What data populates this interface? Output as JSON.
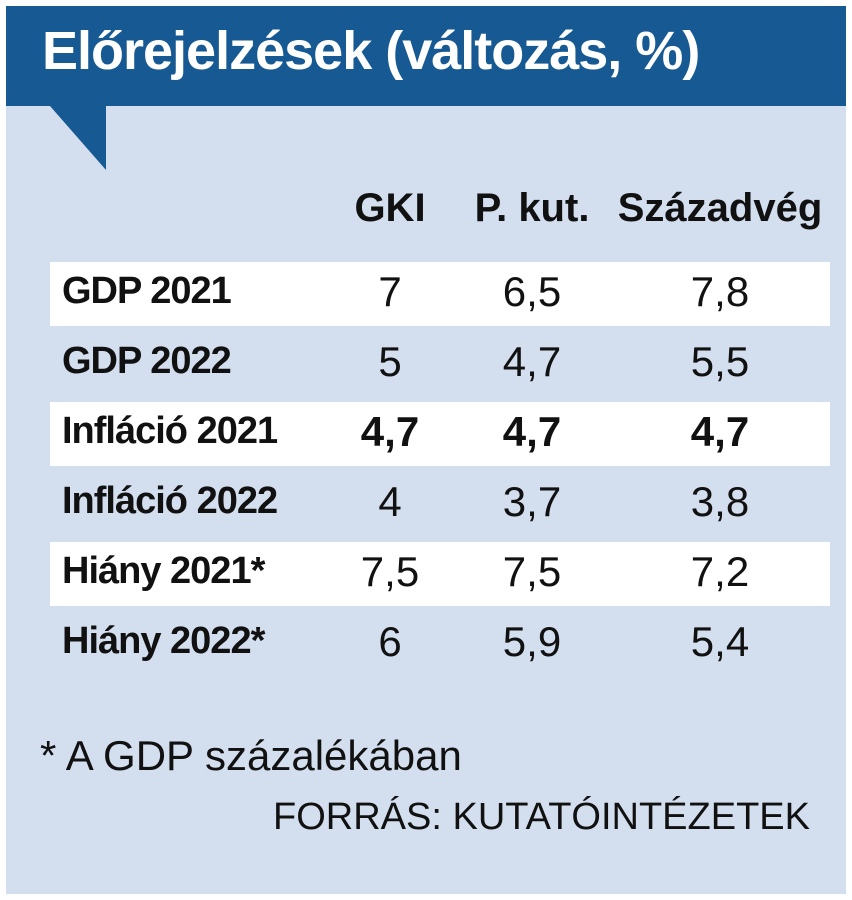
{
  "title": "Előrejelzések (változás, %)",
  "chart_data": {
    "type": "table",
    "title": "Előrejelzések (változás, %)",
    "columns": [
      "GKI",
      "P. kut.",
      "Századvég"
    ],
    "rows": [
      {
        "label": "GDP 2021",
        "values": [
          "7",
          "6,5",
          "7,8"
        ],
        "bold": false
      },
      {
        "label": "GDP 2022",
        "values": [
          "5",
          "4,7",
          "5,5"
        ],
        "bold": false
      },
      {
        "label": "Infláció 2021",
        "values": [
          "4,7",
          "4,7",
          "4,7"
        ],
        "bold": true
      },
      {
        "label": "Infláció 2022",
        "values": [
          "4",
          "3,7",
          "3,8"
        ],
        "bold": false
      },
      {
        "label": "Hiány 2021*",
        "values": [
          "7,5",
          "7,5",
          "7,2"
        ],
        "bold": false
      },
      {
        "label": "Hiány 2022*",
        "values": [
          "6",
          "5,9",
          "5,4"
        ],
        "bold": false
      }
    ],
    "footnote": "* A GDP százalékában",
    "source": "FORRÁS: KUTATÓINTÉZETEK"
  },
  "colors": {
    "header_blue": "#175a93",
    "panel_blue": "#d3deee",
    "row_white": "#ffffff"
  }
}
